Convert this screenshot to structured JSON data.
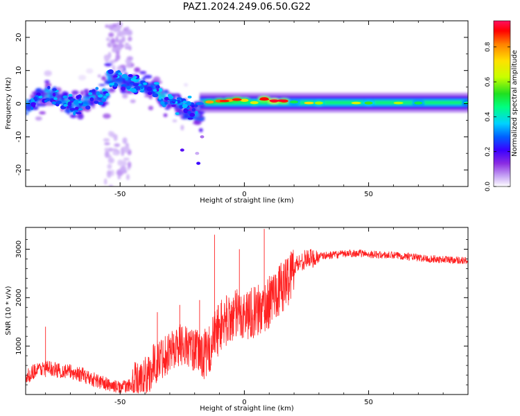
{
  "figure": {
    "title": "PAZ1.2024.249.06.50.G22"
  },
  "colorbar": {
    "label": "Normalized spectral amplitude",
    "ticks": [
      "0.0",
      "0.2",
      "0.4",
      "0.6",
      "0.8"
    ],
    "colormap": [
      "#ffffff",
      "#c9a9f5",
      "#8a2be2",
      "#3a00ff",
      "#0060ff",
      "#00d2ff",
      "#00ff80",
      "#20e020",
      "#c8ff00",
      "#ffe000",
      "#ff8000",
      "#ff0000",
      "#ff1060"
    ]
  },
  "chart_data": [
    {
      "type": "heatmap",
      "xlabel": "Height of straight line (km)",
      "ylabel": "Frequency (Hz)",
      "xlim": [
        -88,
        90
      ],
      "ylim": [
        -25,
        25
      ],
      "xticks": [
        "-50",
        "0",
        "50"
      ],
      "xtick_values": [
        -50,
        0,
        50
      ],
      "yticks": [
        "20",
        "10",
        "0",
        "-10",
        "-20"
      ],
      "ytick_values": [
        20,
        10,
        0,
        -10,
        -20
      ],
      "value_range": [
        0,
        0.95
      ],
      "description_of_content": "",
      "ridge": [
        {
          "x": -18,
          "y": 0.0,
          "amp": 0.35
        },
        {
          "x": -14,
          "y": 0.5,
          "amp": 0.8
        },
        {
          "x": -10,
          "y": 0.8,
          "amp": 0.85
        },
        {
          "x": -6,
          "y": 1.0,
          "amp": 0.8
        },
        {
          "x": -3,
          "y": 1.3,
          "amp": 0.85
        },
        {
          "x": 0,
          "y": 1.0,
          "amp": 0.75
        },
        {
          "x": 4,
          "y": 0.3,
          "amp": 0.7
        },
        {
          "x": 8,
          "y": 1.5,
          "amp": 0.9
        },
        {
          "x": 12,
          "y": 0.8,
          "amp": 0.95
        },
        {
          "x": 16,
          "y": 0.8,
          "amp": 0.9
        },
        {
          "x": 20,
          "y": 0.5,
          "amp": 0.55
        },
        {
          "x": 30,
          "y": 0.2,
          "amp": 0.65
        },
        {
          "x": 50,
          "y": 0.2,
          "amp": 0.6
        },
        {
          "x": 70,
          "y": 0.2,
          "amp": 0.55
        },
        {
          "x": 90,
          "y": 0.2,
          "amp": 0.5
        }
      ]
    },
    {
      "type": "line",
      "xlabel": "Height of straight line (km)",
      "ylabel": "SNR (10 * v/v)",
      "xlim": [
        -88,
        90
      ],
      "ylim": [
        0,
        3450
      ],
      "xticks": [
        "-50",
        "0",
        "50"
      ],
      "xtick_values": [
        -50,
        0,
        50
      ],
      "yticks": [
        "1000",
        "2000",
        "3000"
      ],
      "ytick_values": [
        1000,
        2000,
        3000
      ],
      "color": "#ff2020",
      "series": [
        {
          "x": [
            -88,
            -85,
            -80,
            -75,
            -70,
            -65,
            -60,
            -55,
            -50,
            -45,
            -40,
            -35,
            -30,
            -25,
            -20,
            -17,
            -15,
            -12,
            -10,
            -8,
            -5,
            -2,
            0,
            3,
            5,
            8,
            10,
            12,
            15,
            18,
            20,
            23,
            25,
            28,
            30,
            35,
            40,
            45,
            50,
            55,
            60,
            65,
            70,
            75,
            80,
            85,
            90
          ],
          "y": [
            330,
            480,
            560,
            500,
            470,
            400,
            300,
            200,
            150,
            200,
            350,
            700,
            900,
            1050,
            900,
            850,
            800,
            1200,
            1400,
            1500,
            1600,
            1650,
            1650,
            1700,
            1700,
            1800,
            1900,
            2100,
            2200,
            2400,
            2650,
            2750,
            2800,
            2820,
            2850,
            2880,
            2900,
            2920,
            2900,
            2880,
            2870,
            2860,
            2820,
            2800,
            2790,
            2780,
            2760
          ]
        }
      ]
    }
  ]
}
